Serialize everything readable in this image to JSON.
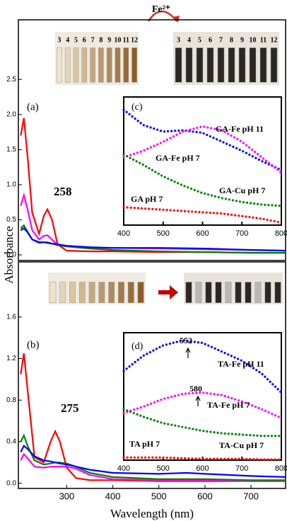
{
  "chart_data": [
    {
      "type": "line",
      "panel_label": "(a)",
      "y_label": "Absorbance",
      "annotation": "258",
      "x": [
        200,
        207,
        215,
        225,
        240,
        250,
        258,
        268,
        280,
        300,
        350,
        400,
        500,
        600,
        700,
        775
      ],
      "xlim": [
        195,
        775
      ],
      "ylim": [
        -0.08,
        3.35
      ],
      "yticks": [
        0.0,
        0.5,
        1.0,
        1.5,
        2.0,
        2.5
      ],
      "series": [
        {
          "color": "#ff0000",
          "values": [
            1.7,
            1.95,
            1.4,
            0.6,
            0.3,
            0.55,
            0.65,
            0.5,
            0.15,
            0.06,
            0.05,
            0.05,
            0.04,
            0.04,
            0.03,
            0.03
          ]
        },
        {
          "color": "#ff00ff",
          "values": [
            0.7,
            0.85,
            0.65,
            0.35,
            0.22,
            0.27,
            0.28,
            0.22,
            0.14,
            0.12,
            0.1,
            0.1,
            0.09,
            0.08,
            0.07,
            0.06
          ]
        },
        {
          "color": "#008000",
          "values": [
            0.38,
            0.42,
            0.33,
            0.22,
            0.17,
            0.18,
            0.18,
            0.16,
            0.14,
            0.12,
            0.09,
            0.07,
            0.05,
            0.04,
            0.03,
            0.03
          ]
        },
        {
          "color": "#0000ff",
          "values": [
            0.35,
            0.38,
            0.32,
            0.22,
            0.18,
            0.18,
            0.17,
            0.16,
            0.15,
            0.13,
            0.11,
            0.1,
            0.1,
            0.09,
            0.07,
            0.06
          ]
        }
      ],
      "photos": {
        "reagent": "Fe²⁺",
        "before_labels": [
          "3",
          "4",
          "5",
          "6",
          "7",
          "8",
          "9",
          "10",
          "11",
          "12"
        ],
        "after_labels": [
          "3",
          "4",
          "5",
          "6",
          "7",
          "8",
          "9",
          "10",
          "11",
          "12"
        ]
      }
    },
    {
      "type": "line",
      "panel_label": "(b)",
      "x_label": "Wavelength (nm)",
      "annotation": "275",
      "x": [
        200,
        207,
        215,
        230,
        250,
        265,
        275,
        285,
        300,
        320,
        350,
        400,
        500,
        560,
        600,
        700,
        775
      ],
      "xlim": [
        195,
        775
      ],
      "xticks": [
        300,
        400,
        500,
        600,
        700
      ],
      "ylim": [
        -0.05,
        2.13
      ],
      "yticks": [
        0.0,
        0.4,
        0.8,
        1.2,
        1.6
      ],
      "series": [
        {
          "color": "#ff0000",
          "values": [
            1.05,
            1.25,
            0.9,
            0.25,
            0.2,
            0.4,
            0.5,
            0.4,
            0.15,
            0.05,
            0.03,
            0.03,
            0.02,
            0.02,
            0.02,
            0.02,
            0.02
          ]
        },
        {
          "color": "#ff00ff",
          "values": [
            0.22,
            0.28,
            0.24,
            0.16,
            0.15,
            0.16,
            0.16,
            0.16,
            0.16,
            0.14,
            0.08,
            0.04,
            0.03,
            0.03,
            0.03,
            0.02,
            0.02
          ]
        },
        {
          "color": "#008000",
          "values": [
            0.4,
            0.46,
            0.36,
            0.22,
            0.18,
            0.19,
            0.2,
            0.2,
            0.19,
            0.16,
            0.1,
            0.06,
            0.04,
            0.04,
            0.04,
            0.03,
            0.03
          ]
        },
        {
          "color": "#0000ff",
          "values": [
            0.3,
            0.36,
            0.33,
            0.26,
            0.22,
            0.21,
            0.2,
            0.19,
            0.18,
            0.16,
            0.13,
            0.1,
            0.09,
            0.1,
            0.09,
            0.07,
            0.06
          ]
        }
      ]
    },
    {
      "type": "dotted-line",
      "panel_label": "(c)",
      "x": [
        400,
        450,
        500,
        550,
        600,
        650,
        700,
        750,
        800
      ],
      "xlim": [
        400,
        800
      ],
      "xticks": [
        400,
        500,
        600,
        700,
        800
      ],
      "ylim": [
        0,
        1
      ],
      "series": [
        {
          "name": "GA-Fe pH 11",
          "color": "#0000ff",
          "values": [
            0.9,
            0.78,
            0.73,
            0.74,
            0.72,
            0.65,
            0.58,
            0.5,
            0.43
          ]
        },
        {
          "name": "GA-Fe pH 7",
          "color": "#ff00ff",
          "values": [
            0.53,
            0.58,
            0.65,
            0.73,
            0.77,
            0.74,
            0.65,
            0.53,
            0.41
          ]
        },
        {
          "name": "GA-Cu pH 7",
          "color": "#008000",
          "values": [
            0.55,
            0.47,
            0.38,
            0.31,
            0.25,
            0.21,
            0.18,
            0.16,
            0.15
          ]
        },
        {
          "name": "GA pH 7",
          "color": "#ff0000",
          "values": [
            0.14,
            0.13,
            0.12,
            0.11,
            0.1,
            0.09,
            0.07,
            0.05,
            0.02
          ]
        }
      ]
    },
    {
      "type": "dotted-line",
      "panel_label": "(d)",
      "annotations": [
        "552",
        "580"
      ],
      "x": [
        400,
        450,
        500,
        550,
        600,
        650,
        700,
        750,
        800
      ],
      "xlim": [
        400,
        800
      ],
      "xticks": [
        400,
        500,
        600,
        700,
        800
      ],
      "ylim": [
        0,
        1
      ],
      "series": [
        {
          "name": "TA-Fe pH 11",
          "color": "#0000ff",
          "values": [
            0.7,
            0.82,
            0.9,
            0.94,
            0.92,
            0.85,
            0.78,
            0.68,
            0.53
          ]
        },
        {
          "name": "TA-Fe pH 7",
          "color": "#ff00ff",
          "values": [
            0.37,
            0.42,
            0.48,
            0.52,
            0.53,
            0.51,
            0.46,
            0.4,
            0.33
          ]
        },
        {
          "name": "TA-Cu pH 7",
          "color": "#008000",
          "values": [
            0.4,
            0.34,
            0.29,
            0.26,
            0.23,
            0.21,
            0.2,
            0.19,
            0.19
          ]
        },
        {
          "name": "TA pH 7",
          "color": "#ff0000",
          "values": [
            0.02,
            0.02,
            0.02,
            0.015,
            0.01,
            0.01,
            0.01,
            0.005,
            0.005
          ]
        }
      ]
    }
  ]
}
